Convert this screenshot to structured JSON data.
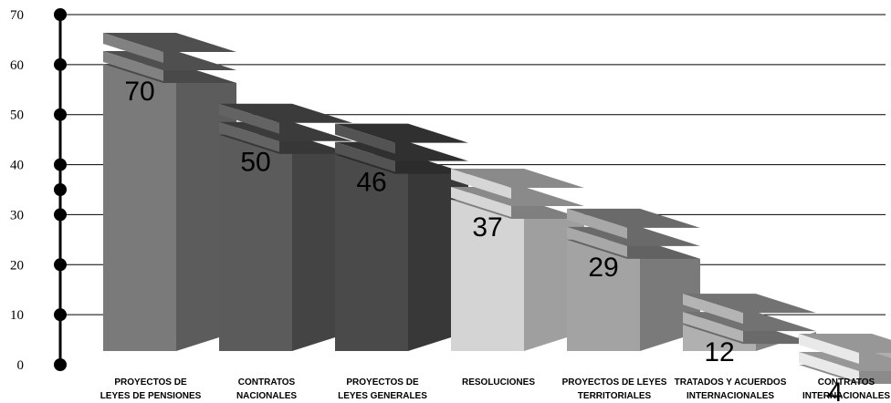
{
  "chart_data": {
    "type": "bar",
    "title": "",
    "xlabel": "",
    "ylabel": "",
    "ylim": [
      0,
      70
    ],
    "yticks": [
      "0",
      "10",
      "20",
      "30",
      "40",
      "50",
      "60",
      "70"
    ],
    "grid": true,
    "legend": "none",
    "categories": [
      [
        "PROYECTOS DE",
        "LEYES DE PENSIONES"
      ],
      [
        "CONTRATOS",
        "NACIONALES"
      ],
      [
        "PROYECTOS DE",
        "LEYES GENERALES"
      ],
      [
        "RESOLUCIONES"
      ],
      [
        "PROYECTOS DE LEYES",
        "TERRITORIALES"
      ],
      [
        "TRATADOS Y ACUERDOS",
        "INTERNACIONALES"
      ],
      [
        "CONTRATOS",
        "INTERNACIONALES"
      ]
    ],
    "values": [
      70,
      50,
      46,
      37,
      29,
      12,
      4
    ],
    "value_labels": [
      "70",
      "50",
      "46",
      "37",
      "29",
      "12",
      "4"
    ],
    "colors": [
      "#7a7a7a",
      "#5b5b5b",
      "#4a4a4a",
      "#d4d4d4",
      "#a3a3a3",
      "#b0b0b0",
      "#e8e8e8"
    ]
  }
}
